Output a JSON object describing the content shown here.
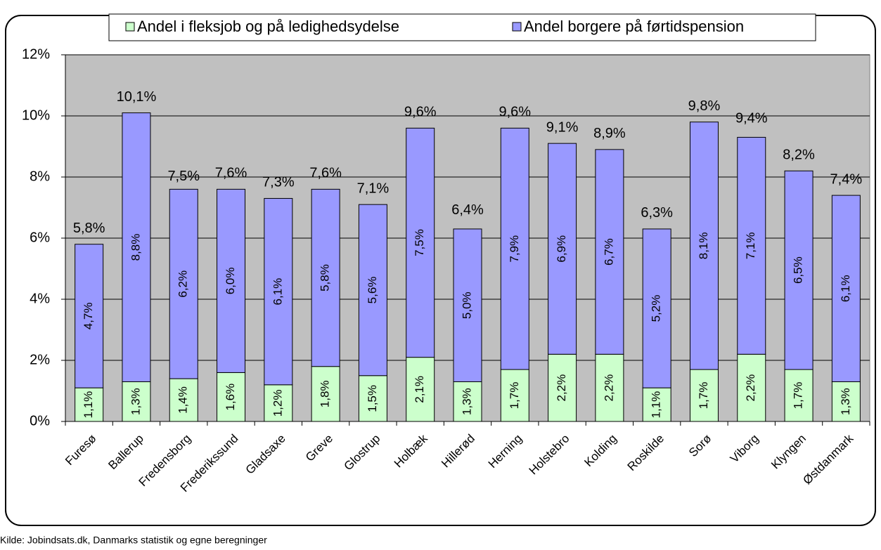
{
  "chart_data": {
    "type": "stacked_bar",
    "categories": [
      "Furesø",
      "Ballerup",
      "Fredensborg",
      "Frederikssund",
      "Gladsaxe",
      "Greve",
      "Glostrup",
      "Holbæk",
      "Hillerød",
      "Herning",
      "Holstebro",
      "Kolding",
      "Roskilde",
      "Sorø",
      "Viborg",
      "Klyngen",
      "Østdanmark"
    ],
    "series": [
      {
        "name": "Andel i fleksjob og på ledighedsydelse",
        "color": "#ccffcc",
        "values": [
          1.1,
          1.3,
          1.4,
          1.6,
          1.2,
          1.8,
          1.5,
          2.1,
          1.3,
          1.7,
          2.2,
          2.2,
          1.1,
          1.7,
          2.2,
          1.7,
          1.3
        ],
        "value_labels": [
          "1,1%",
          "1,3%",
          "1,4%",
          "1,6%",
          "1,2%",
          "1,8%",
          "1,5%",
          "2,1%",
          "1,3%",
          "1,7%",
          "2,2%",
          "2,2%",
          "1,1%",
          "1,7%",
          "2,2%",
          "1,7%",
          "1,3%"
        ]
      },
      {
        "name": "Andel borgere på førtidspension",
        "color": "#9999ff",
        "values": [
          4.7,
          8.8,
          6.2,
          6.0,
          6.1,
          5.8,
          5.6,
          7.5,
          5.0,
          7.9,
          6.9,
          6.7,
          5.2,
          8.1,
          7.1,
          6.5,
          6.1
        ],
        "value_labels": [
          "4,7%",
          "8,8%",
          "6,2%",
          "6,0%",
          "6,1%",
          "5,8%",
          "5,6%",
          "7,5%",
          "5,0%",
          "7,9%",
          "6,9%",
          "6,7%",
          "5,2%",
          "8,1%",
          "7,1%",
          "6,5%",
          "6,1%"
        ]
      }
    ],
    "totals": [
      5.8,
      10.1,
      7.5,
      7.6,
      7.3,
      7.6,
      7.1,
      9.6,
      6.4,
      9.6,
      9.1,
      8.9,
      6.3,
      9.8,
      9.4,
      8.2,
      7.4
    ],
    "total_labels": [
      "5,8%",
      "10,1%",
      "7,5%",
      "7,6%",
      "7,3%",
      "7,6%",
      "7,1%",
      "9,6%",
      "6,4%",
      "9,6%",
      "9,1%",
      "8,9%",
      "6,3%",
      "9,8%",
      "9,4%",
      "8,2%",
      "7,4%"
    ],
    "ylim": [
      0,
      12
    ],
    "yticks": [
      {
        "value": 0,
        "label": "0%"
      },
      {
        "value": 2,
        "label": "2%"
      },
      {
        "value": 4,
        "label": "4%"
      },
      {
        "value": 6,
        "label": "6%"
      },
      {
        "value": 8,
        "label": "8%"
      },
      {
        "value": 10,
        "label": "10%"
      },
      {
        "value": 12,
        "label": "12%"
      }
    ],
    "grid": true,
    "plot_background": "#c0c0c0",
    "source": "Kilde: Jobindsats.dk, Danmarks statistik og egne beregninger"
  }
}
